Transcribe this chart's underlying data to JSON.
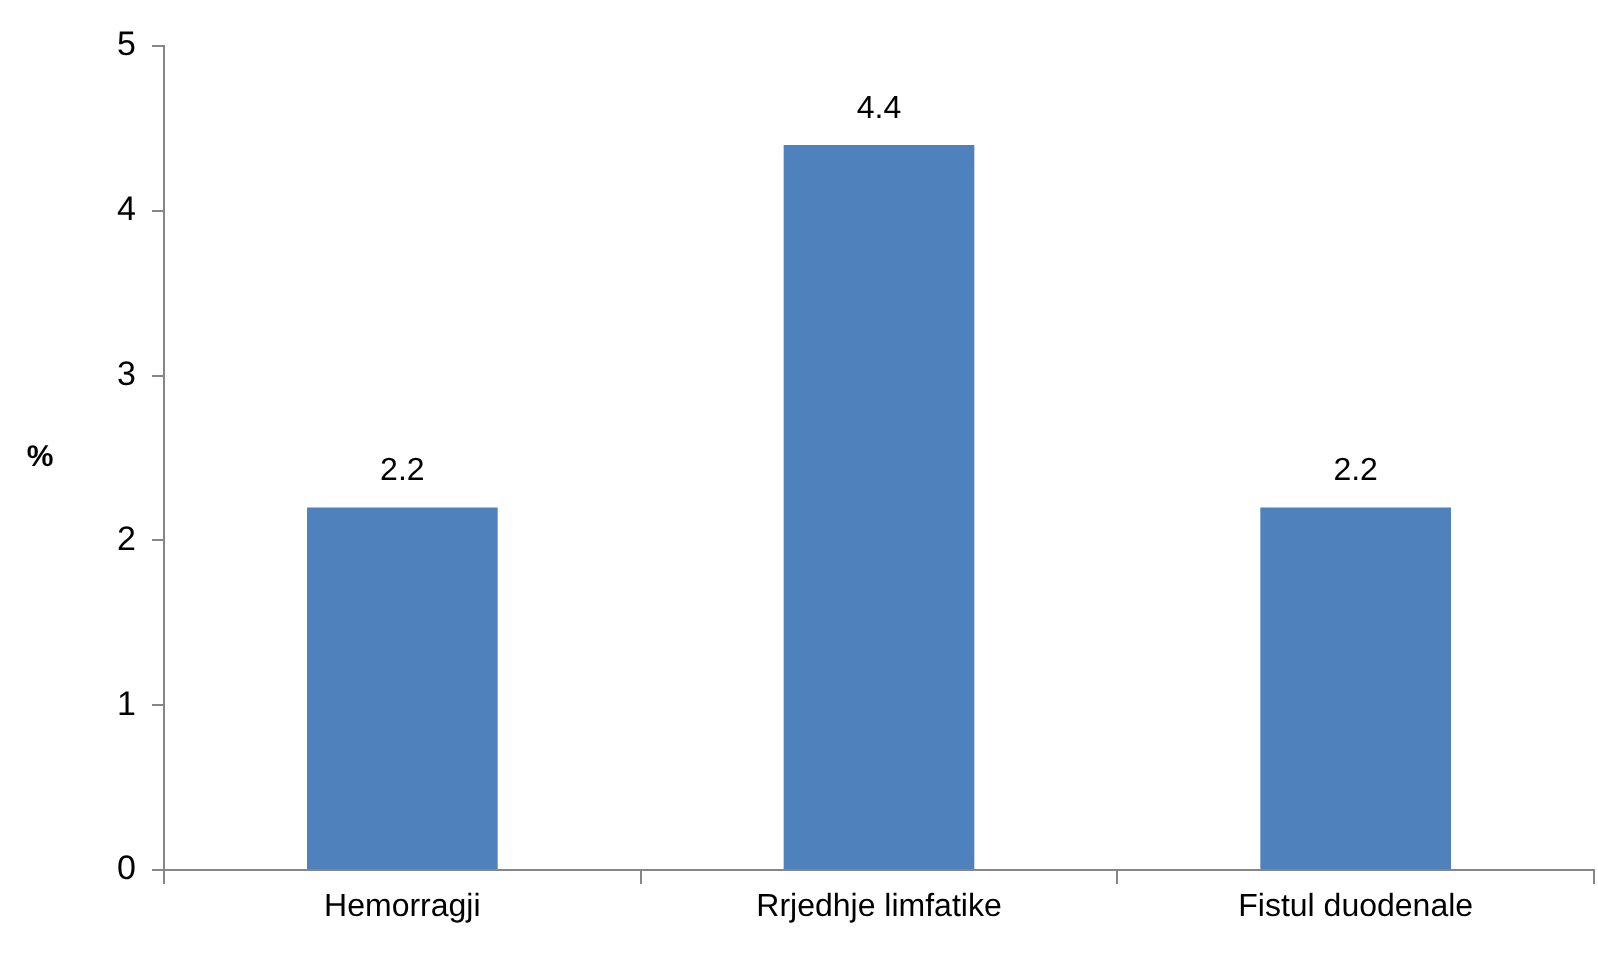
{
  "chart_data": {
    "type": "bar",
    "ylabel": "%",
    "categories": [
      "Hemorragji",
      "Rrjedhje limfatike",
      "Fistul duodenale"
    ],
    "values": [
      2.2,
      4.4,
      2.2
    ],
    "color": "#4f81bd",
    "ylim": [
      0,
      5
    ],
    "yticks": [
      0,
      1,
      2,
      3,
      4,
      5
    ],
    "data_labels": true
  }
}
